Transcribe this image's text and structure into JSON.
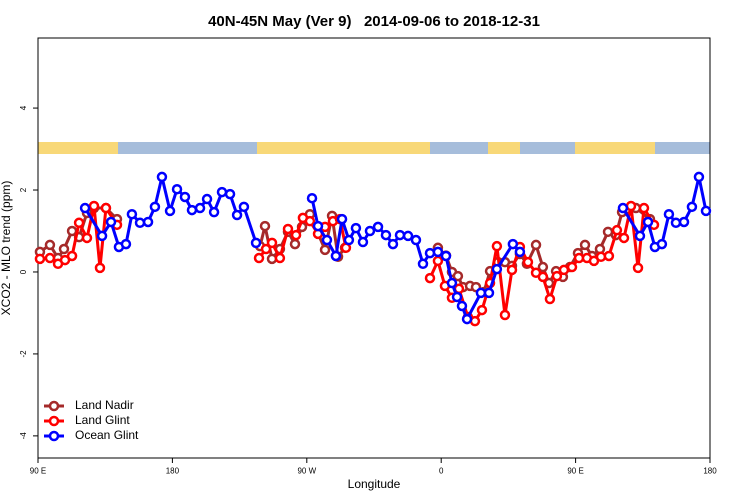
{
  "chart_data": {
    "type": "line",
    "title": "40N-45N May (Ver 9)   2014-09-06 to 2018-12-31",
    "x_label": "Longitude",
    "y_label": "XCO2 - MLO trend (ppm)",
    "xlim": [
      90,
      540
    ],
    "ylim": [
      -4.54,
      5.71
    ],
    "xticks": [
      {
        "value": 90,
        "label": "90 E"
      },
      180,
      {
        "value": 270,
        "label": "90 W"
      },
      {
        "value": 360,
        "label": "0"
      },
      {
        "value": 450,
        "label": "90 E"
      },
      {
        "value": 540,
        "label": "180"
      }
    ],
    "yticks": [
      -4,
      -2,
      0,
      2,
      4
    ],
    "legend_position": "bottomleft",
    "series": [
      {
        "name": "Land Nadir",
        "color": "#a52a2a",
        "x": [
          91.3,
          98.0,
          103.4,
          107.4,
          112.8,
          117.5,
          122.8,
          127.5,
          135.5,
          142.9,
          null,
          238.7,
          242.0,
          246.7,
          252.0,
          257.4,
          262.1,
          266.8,
          272.1,
          282.2,
          286.9,
          290.9,
          295.6,
          null,
          357.8,
          363.2,
          367.2,
          371.2,
          374.6,
          379.3,
          383.3,
          388.6,
          392.7,
          398.0,
          402.7,
          407.4,
          412.7,
          417.4,
          423.5,
          428.1,
          432.2,
          436.9,
          441.5,
          446.2,
          451.6,
          456.3,
          461.0,
          466.3,
          471.7,
          477.0,
          481.1,
          485.1,
          490.4,
          499.8
        ],
        "values": [
          0.49,
          0.66,
          0.34,
          0.56,
          1.0,
          0.85,
          1.44,
          1.56,
          1.56,
          1.29,
          null,
          0.63,
          1.12,
          0.32,
          0.56,
          0.98,
          0.68,
          1.1,
          1.41,
          0.54,
          1.37,
          0.37,
          0.59,
          null,
          0.59,
          0.4,
          0.0,
          -0.1,
          -0.37,
          -0.34,
          -0.37,
          -0.49,
          0.02,
          0.24,
          0.24,
          0.15,
          0.44,
          0.2,
          0.66,
          0.12,
          -0.27,
          0.02,
          -0.12,
          0.12,
          0.46,
          0.66,
          0.39,
          0.56,
          0.98,
          0.9,
          1.46,
          1.54,
          1.56,
          1.29
        ]
      },
      {
        "name": "Land Glint",
        "color": "#ff0000",
        "x": [
          91.3,
          98.0,
          103.4,
          108.1,
          112.8,
          117.5,
          122.8,
          127.5,
          131.5,
          135.5,
          142.9,
          null,
          238.0,
          242.7,
          246.7,
          252.0,
          257.4,
          262.8,
          267.4,
          272.1,
          277.5,
          282.2,
          287.5,
          292.2,
          296.2,
          null,
          352.5,
          357.8,
          362.5,
          367.2,
          371.9,
          377.9,
          382.6,
          387.3,
          392.7,
          397.3,
          402.7,
          407.4,
          412.7,
          418.1,
          423.5,
          428.1,
          432.8,
          437.5,
          442.2,
          447.6,
          452.3,
          457.6,
          462.3,
          467.0,
          472.3,
          477.7,
          482.4,
          487.1,
          491.8,
          495.8,
          502.5
        ],
        "values": [
          0.32,
          0.34,
          0.2,
          0.29,
          0.39,
          1.2,
          0.83,
          1.61,
          0.1,
          1.56,
          1.15,
          null,
          0.34,
          0.56,
          0.71,
          0.34,
          1.05,
          0.9,
          1.32,
          1.24,
          0.93,
          1.1,
          1.24,
          1.29,
          0.59,
          null,
          -0.15,
          0.27,
          -0.34,
          -0.63,
          -0.41,
          -1.1,
          -1.2,
          -0.93,
          -0.27,
          0.63,
          -1.05,
          0.05,
          0.61,
          0.24,
          -0.02,
          -0.12,
          -0.66,
          -0.1,
          0.05,
          0.12,
          0.34,
          0.34,
          0.27,
          0.37,
          0.39,
          1.02,
          0.83,
          1.61,
          0.1,
          1.56,
          1.15
        ]
      },
      {
        "name": "Ocean Glint",
        "color": "#0000ff",
        "x": [
          121.5,
          132.9,
          138.9,
          144.2,
          148.9,
          152.9,
          158.3,
          163.7,
          168.3,
          173.0,
          178.4,
          183.1,
          188.4,
          193.1,
          198.5,
          203.2,
          207.9,
          213.2,
          218.6,
          223.3,
          227.9,
          236.0,
          null,
          273.5,
          277.5,
          283.5,
          289.5,
          293.6,
          298.2,
          302.9,
          307.6,
          312.3,
          317.7,
          323.0,
          327.7,
          332.4,
          337.8,
          343.1,
          347.8,
          352.5,
          357.8,
          363.2,
          367.2,
          370.6,
          373.9,
          377.3,
          386.6,
          392.0,
          397.3,
          408.0,
          412.7,
          null,
          481.7,
          493.1,
          498.5,
          503.1,
          507.8,
          512.5,
          517.2,
          522.6,
          527.9,
          532.6,
          537.3
        ],
        "values": [
          1.56,
          0.88,
          1.22,
          0.61,
          0.68,
          1.41,
          1.2,
          1.22,
          1.59,
          2.32,
          1.49,
          2.02,
          1.83,
          1.51,
          1.56,
          1.78,
          1.46,
          1.95,
          1.9,
          1.39,
          1.59,
          0.71,
          null,
          1.8,
          1.12,
          0.78,
          0.39,
          1.29,
          0.78,
          1.07,
          0.73,
          1.0,
          1.1,
          0.9,
          0.68,
          0.9,
          0.88,
          0.78,
          0.2,
          0.46,
          0.49,
          0.39,
          -0.27,
          -0.61,
          -0.83,
          -1.15,
          -0.51,
          -0.51,
          0.07,
          0.68,
          0.49,
          null,
          1.56,
          0.88,
          1.22,
          0.61,
          0.68,
          1.41,
          1.2,
          1.22,
          1.59,
          2.32,
          1.49
        ]
      }
    ]
  }
}
